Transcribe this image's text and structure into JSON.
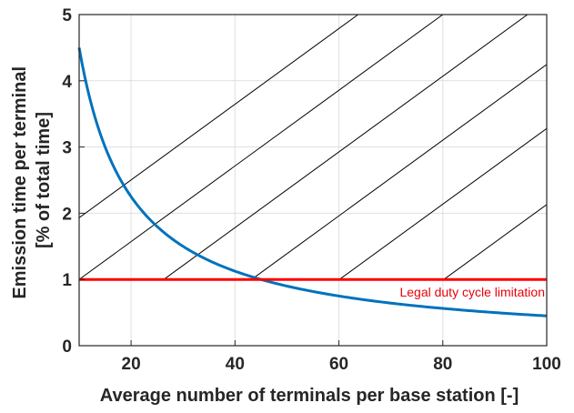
{
  "chart_data": {
    "type": "line",
    "title": "",
    "xlabel": "Average number of terminals per base station [-]",
    "ylabel_lines": [
      "Emission time per terminal",
      "[% of total time]"
    ],
    "xlim": [
      10,
      100
    ],
    "ylim": [
      0,
      5
    ],
    "xticks": [
      20,
      40,
      60,
      80,
      100
    ],
    "yticks": [
      0,
      1,
      2,
      3,
      4,
      5
    ],
    "grid": true,
    "series": [
      {
        "color": "#0072bd",
        "formula": "y = 45 / x",
        "x": [
          10,
          12,
          14,
          16,
          18,
          20,
          22,
          25,
          30,
          35,
          40,
          45,
          50,
          60,
          70,
          80,
          90,
          100
        ],
        "y": [
          4.5,
          3.75,
          3.21,
          2.81,
          2.5,
          2.25,
          2.05,
          1.8,
          1.5,
          1.29,
          1.13,
          1.0,
          0.9,
          0.75,
          0.64,
          0.56,
          0.5,
          0.45
        ]
      },
      {
        "color": "#ff0000",
        "x": [
          10,
          100
        ],
        "y": [
          1,
          1
        ]
      }
    ],
    "annotations": [
      {
        "text": "Legal duty cycle limitation",
        "x": 96,
        "y": 0.8,
        "color": "#e8000b"
      }
    ],
    "hatched_region": {
      "description_from_chart": "diagonal hatch above the 1% line",
      "y_from": 1,
      "y_to": 5,
      "line_x_at_y1": [
        10,
        26.3,
        43.2,
        60.1,
        80.2
      ],
      "slope_x_per_y": 17.5
    }
  }
}
